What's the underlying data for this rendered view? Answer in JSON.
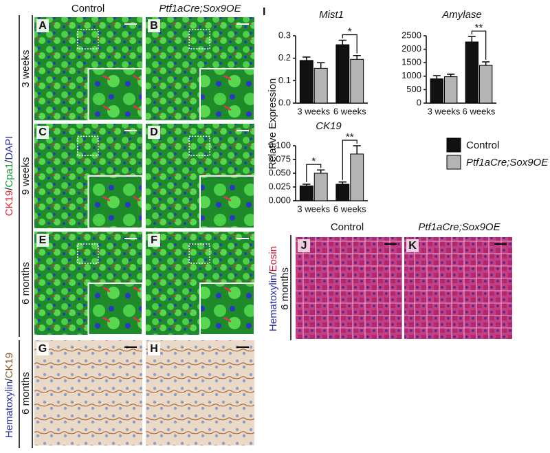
{
  "figure": {
    "panel_labels": [
      "A",
      "B",
      "C",
      "D",
      "E",
      "F",
      "G",
      "H",
      "I",
      "J",
      "K"
    ],
    "column_headers": [
      "Control",
      "Ptf1aCre;Sox9OE"
    ],
    "row_labels": [
      "3 weeks",
      "9 weeks",
      "6 months",
      "6 months"
    ],
    "fluorescence_stain": [
      "CK19",
      "/",
      "Cpa1",
      "/",
      "DAPI"
    ],
    "ihc_stain": [
      "Hematoxylin",
      "/",
      "CK19"
    ],
    "he_stain": [
      "Hematoxylin",
      "/",
      "Eosin"
    ],
    "he_headers": [
      "Control",
      "Ptf1aCre;Sox9OE"
    ],
    "he_row_label": "6 months",
    "y_label": "Relative Expression"
  },
  "chart_data": [
    {
      "type": "bar",
      "title": "Mist1",
      "categories": [
        "3 weeks",
        "6 weeks"
      ],
      "series": [
        {
          "name": "Control",
          "color": "#111111",
          "values": [
            0.19,
            0.26
          ],
          "errors": [
            0.015,
            0.02
          ]
        },
        {
          "name": "Ptf1aCre;Sox9OE",
          "color": "#b4b4b4",
          "values": [
            0.155,
            0.195
          ],
          "errors": [
            0.025,
            0.017
          ]
        }
      ],
      "ylim": [
        0,
        0.3
      ],
      "yticks": [
        {
          "value": 0,
          "label": "0.0"
        },
        {
          "value": 0.1,
          "label": "0.1"
        },
        {
          "value": 0.2,
          "label": "0.2"
        },
        {
          "value": 0.3,
          "label": "0.3"
        }
      ],
      "annotations": [
        {
          "label": "*",
          "category": "6 weeks"
        }
      ]
    },
    {
      "type": "bar",
      "title": "Amylase",
      "categories": [
        "3 weeks",
        "6 weeks"
      ],
      "series": [
        {
          "name": "Control",
          "color": "#111111",
          "values": [
            900,
            2270
          ],
          "errors": [
            120,
            200
          ]
        },
        {
          "name": "Ptf1aCre;Sox9OE",
          "color": "#b4b4b4",
          "values": [
            980,
            1400
          ],
          "errors": [
            90,
            130
          ]
        }
      ],
      "ylim": [
        0,
        2500
      ],
      "yticks": [
        0,
        500,
        1000,
        1500,
        2000,
        2500
      ],
      "annotations": [
        {
          "label": "**",
          "category": "6 weeks"
        }
      ]
    },
    {
      "type": "bar",
      "title": "CK19",
      "categories": [
        "3 weeks",
        "6 weeks"
      ],
      "series": [
        {
          "name": "Control",
          "color": "#111111",
          "values": [
            0.027,
            0.03
          ],
          "errors": [
            0.003,
            0.004
          ]
        },
        {
          "name": "Ptf1aCre;Sox9OE",
          "color": "#b4b4b4",
          "values": [
            0.05,
            0.085
          ],
          "errors": [
            0.006,
            0.015
          ]
        }
      ],
      "ylim": [
        0,
        0.1
      ],
      "yticks": [
        {
          "value": 0,
          "label": "0.000"
        },
        {
          "value": 0.025,
          "label": "0.025"
        },
        {
          "value": 0.05,
          "label": "0.050"
        },
        {
          "value": 0.075,
          "label": "0.075"
        },
        {
          "value": 0.1,
          "label": "0.100"
        }
      ],
      "annotations": [
        {
          "label": "*",
          "category": "3 weeks"
        },
        {
          "label": "**",
          "category": "6 weeks"
        }
      ]
    }
  ]
}
